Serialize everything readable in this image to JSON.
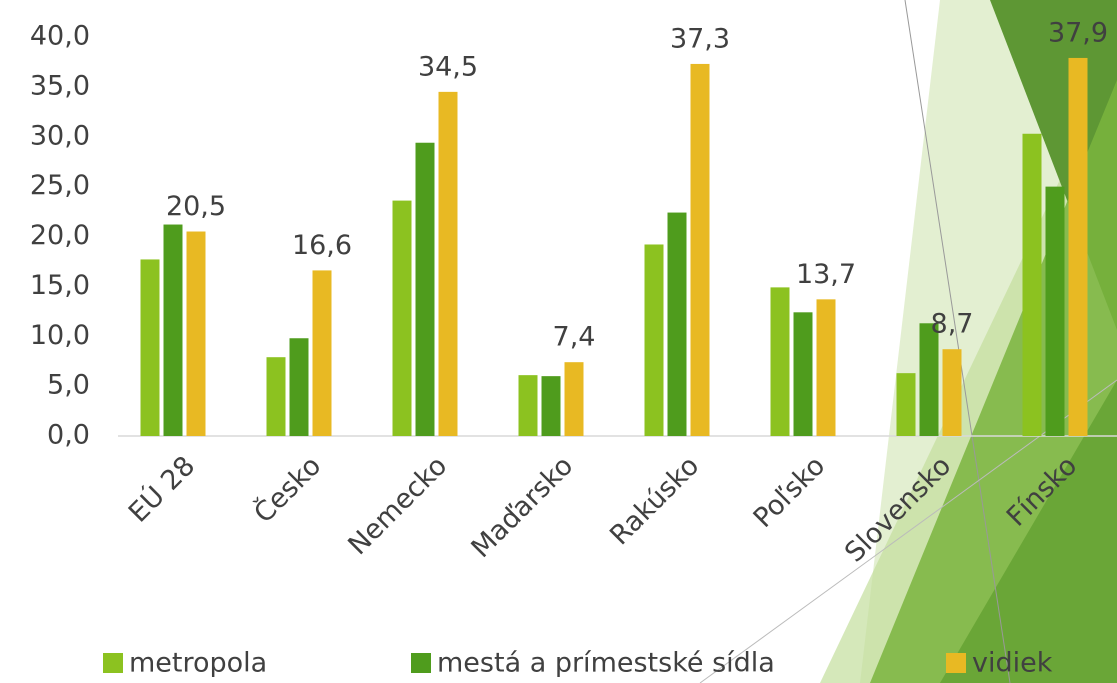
{
  "chart_data": {
    "type": "bar",
    "categories": [
      "EÚ 28",
      "Česko",
      "Nemecko",
      "Maďarsko",
      "Rakúsko",
      "Poľsko",
      "Slovensko",
      "Fínsko"
    ],
    "series": [
      {
        "name": "metropola",
        "color": "#8cc220",
        "values": [
          17.7,
          7.9,
          23.6,
          6.1,
          19.2,
          14.9,
          6.3,
          30.3
        ]
      },
      {
        "name": "mestá a prímestské sídla",
        "color": "#4f9c1d",
        "values": [
          21.2,
          9.8,
          29.4,
          6.0,
          22.4,
          12.4,
          11.3,
          25.0
        ]
      },
      {
        "name": "vidiek",
        "color": "#e8b923",
        "values": [
          20.5,
          16.6,
          34.5,
          7.4,
          37.3,
          13.7,
          8.7,
          37.9
        ],
        "value_labels": [
          "20,5",
          "16,6",
          "34,5",
          "7,4",
          "37,3",
          "13,7",
          "8,7",
          "37,9"
        ]
      }
    ],
    "ylim": [
      0,
      40
    ],
    "yticks": [
      {
        "value": 0,
        "label": "0,0"
      },
      {
        "value": 5,
        "label": "5,0"
      },
      {
        "value": 10,
        "label": "10,0"
      },
      {
        "value": 15,
        "label": "15,0"
      },
      {
        "value": 20,
        "label": "20,0"
      },
      {
        "value": 25,
        "label": "25,0"
      },
      {
        "value": 30,
        "label": "30,0"
      },
      {
        "value": 35,
        "label": "35,0"
      },
      {
        "value": 40,
        "label": "40,0"
      }
    ],
    "legend": "bottom"
  }
}
